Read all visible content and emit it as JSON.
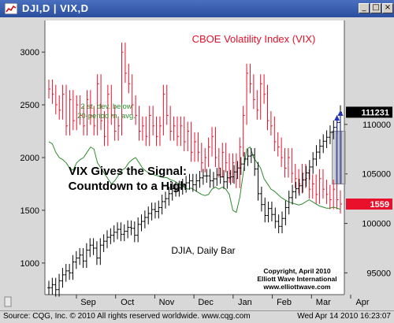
{
  "window": {
    "title": "DJI,D   |   VIX,D",
    "icon": "chart-window-icon",
    "buttons": [
      "minimize",
      "maximize",
      "close"
    ]
  },
  "statusbar": {
    "left": "Source: CQG, Inc. © 2010 All rights reserved worldwide. www.cqg.com",
    "right": "Wed Apr 14 2010 16:23:07"
  },
  "annotations": {
    "vix_title": "CBOE Volatility Index (VIX)",
    "band_label_1": "2 st. dev. below",
    "band_label_2": "20-period m. avg.",
    "signal_1": "VIX Gives the Signal:",
    "signal_2": "Countdown to a High",
    "djia_label": "DJIA, Daily Bar",
    "copyright_1": "Copyright, April 2010",
    "copyright_2": "Elliott Wave International",
    "copyright_3": "www.elliottwave.com"
  },
  "colors": {
    "vix": "#e8102a",
    "band": "#2e8b2e",
    "djia": "#000000",
    "arrow": "#2233bb",
    "vix_badge": "#e8102a",
    "djia_badge": "#000000",
    "signal_box": "#b8b8b8"
  },
  "chart_data": [
    {
      "type": "ohlc",
      "series_name": "CBOE Volatility Index (VIX)",
      "units_note": "VIX x 100 on left axis",
      "y_axis_side": "left",
      "yticks": [
        "3000",
        "2500",
        "2000",
        "1500",
        "1000"
      ],
      "ylim": [
        700,
        3300
      ],
      "last_value": "1559",
      "x_months": [
        "Sep",
        "Oct",
        "Nov",
        "Dec",
        "Jan",
        "Feb",
        "Mar",
        "Apr"
      ],
      "approx_closes": [
        2650,
        2600,
        2500,
        2450,
        2600,
        2300,
        2550,
        2350,
        2500,
        2400,
        2300,
        2550,
        2400,
        2300,
        2700,
        2350,
        2200,
        2600,
        2400,
        2250,
        2300,
        3000,
        2800,
        2700,
        2500,
        2400,
        2250,
        2300,
        2200,
        2400,
        2300,
        2200,
        2300,
        2600,
        2400,
        2250,
        2300,
        2200,
        2300,
        2150,
        2250,
        2050,
        2150,
        2050,
        1950,
        2000,
        2100,
        2200,
        2000,
        1900,
        2050,
        1950,
        1850,
        1950,
        1800,
        2100,
        2400,
        2800,
        2700,
        2550,
        2450,
        2700,
        2600,
        2350,
        2300,
        2150,
        2100,
        2000,
        1900,
        2000,
        1850,
        1800,
        1750,
        1850,
        1800,
        1700,
        1750,
        1650,
        1800,
        1700,
        1650,
        1600,
        1700,
        1600,
        1559
      ]
    },
    {
      "type": "line",
      "series_name": "2 st. dev. below 20-period m. avg.",
      "approx_values": [
        2150,
        2130,
        2050,
        2000,
        1980,
        1950,
        1900,
        1880,
        1950,
        1980,
        2000,
        2050,
        2100,
        2080,
        1950,
        1900,
        1850,
        1800,
        1750,
        1780,
        1830,
        1880,
        1900,
        1950,
        1980,
        2000,
        1950,
        1900,
        1870,
        1850,
        1840,
        1830,
        1820,
        1810,
        1810,
        1790,
        1780,
        1760,
        1740,
        1720,
        1700,
        1710,
        1690,
        1670,
        1650,
        1640,
        1650,
        1700,
        1720,
        1700,
        1720,
        1700,
        1650,
        1500,
        1480,
        1620,
        1850,
        2080,
        2100,
        2000,
        1950,
        1900,
        1800,
        1750,
        1700,
        1680,
        1650,
        1620,
        1600,
        1580,
        1570,
        1560,
        1550,
        1560,
        1580,
        1600,
        1580,
        1560,
        1540,
        1530,
        1520,
        1520,
        1530,
        1520,
        1510
      ]
    },
    {
      "type": "ohlc",
      "series_name": "DJIA, Daily Bar",
      "y_axis_side": "right",
      "yticks": [
        "110000",
        "105000",
        "100000",
        "95000"
      ],
      "ylim": [
        92800,
        120500
      ],
      "last_value": "111231",
      "approx_closes": [
        93500,
        93800,
        93300,
        94200,
        94800,
        95200,
        95000,
        96100,
        96500,
        96800,
        96200,
        97300,
        97800,
        97500,
        96500,
        97800,
        98200,
        98600,
        98800,
        99100,
        99400,
        98900,
        99200,
        99600,
        99500,
        98800,
        99900,
        100200,
        100600,
        101000,
        101400,
        101200,
        101600,
        102200,
        102500,
        103000,
        103500,
        103400,
        103600,
        103800,
        104100,
        104300,
        103900,
        104300,
        104600,
        104800,
        104800,
        104300,
        104500,
        104900,
        104700,
        104200,
        104600,
        104700,
        105200,
        105600,
        106000,
        106500,
        106800,
        106900,
        105500,
        103000,
        101900,
        100800,
        101500,
        100900,
        100200,
        99700,
        100500,
        101600,
        102600,
        103200,
        103500,
        103800,
        104400,
        105100,
        105700,
        106500,
        107200,
        107800,
        108300,
        108700,
        109200,
        109700,
        110200,
        111231
      ]
    }
  ]
}
